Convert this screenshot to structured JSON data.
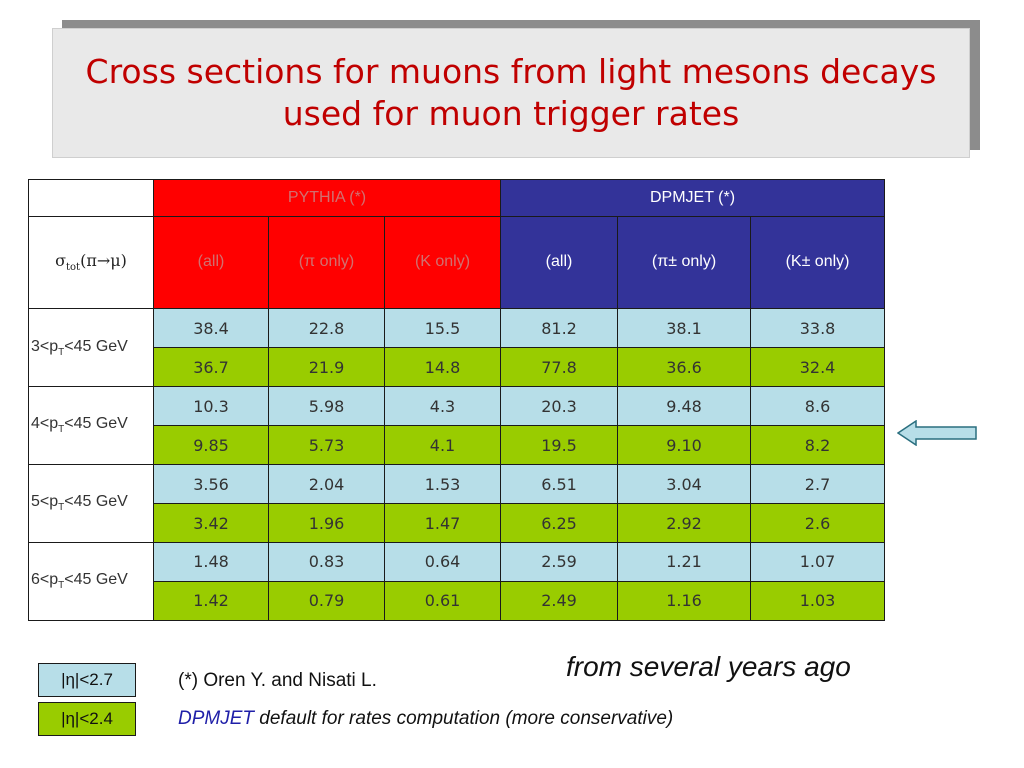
{
  "title": {
    "line1": "Cross sections for muons from light mesons decays",
    "line2": "used for muon trigger rates"
  },
  "table": {
    "pythia_header": "PYTHIA (*)",
    "dpmjet_header": "DPMJET (*)",
    "sigma_label_main": "σ",
    "sigma_label_sub": "tot",
    "sigma_label_rest": "(π→μ)",
    "columns": [
      "(all)",
      "(π only)",
      "(K only)",
      "(all)",
      "(π± only)",
      "(K± only)"
    ],
    "row_groups": [
      {
        "label_pre": "3<p",
        "label_sub": "T",
        "label_post": "<45 GeV",
        "values_eta27": [
          "38.4",
          "22.8",
          "15.5",
          "81.2",
          "38.1",
          "33.8"
        ],
        "values_eta24": [
          "36.7",
          "21.9",
          "14.8",
          "77.8",
          "36.6",
          "32.4"
        ]
      },
      {
        "label_pre": "4<p",
        "label_sub": "T",
        "label_post": "<45 GeV",
        "values_eta27": [
          "10.3",
          "5.98",
          "4.3",
          "20.3",
          "9.48",
          "8.6"
        ],
        "values_eta24": [
          "9.85",
          "5.73",
          "4.1",
          "19.5",
          "9.10",
          "8.2"
        ]
      },
      {
        "label_pre": "5<p",
        "label_sub": "T",
        "label_post": "<45 GeV",
        "values_eta27": [
          "3.56",
          "2.04",
          "1.53",
          "6.51",
          "3.04",
          "2.7"
        ],
        "values_eta24": [
          "3.42",
          "1.96",
          "1.47",
          "6.25",
          "2.92",
          "2.6"
        ]
      },
      {
        "label_pre": "6<p",
        "label_sub": "T",
        "label_post": "<45 GeV",
        "values_eta27": [
          "1.48",
          "0.83",
          "0.64",
          "2.59",
          "1.21",
          "1.07"
        ],
        "values_eta24": [
          "1.42",
          "0.79",
          "0.61",
          "2.49",
          "1.16",
          "1.03"
        ]
      }
    ]
  },
  "legend": {
    "eta27": "|η|<2.7",
    "eta24": "|η|<2.4"
  },
  "notes": {
    "reference": "(*) Oren Y. and Nisati L.",
    "dpmjet_word": "DPMJET",
    "dpmjet_rest": " default for rates computation (more conservative)",
    "from_years": "from several years ago"
  },
  "colors": {
    "title_text": "#c00000",
    "pythia_bg": "#ff0000",
    "dpmjet_bg": "#333399",
    "eta27_bg": "#b7dee8",
    "eta24_bg": "#99cc00"
  },
  "icons": {
    "arrow": "left-arrow-icon"
  }
}
